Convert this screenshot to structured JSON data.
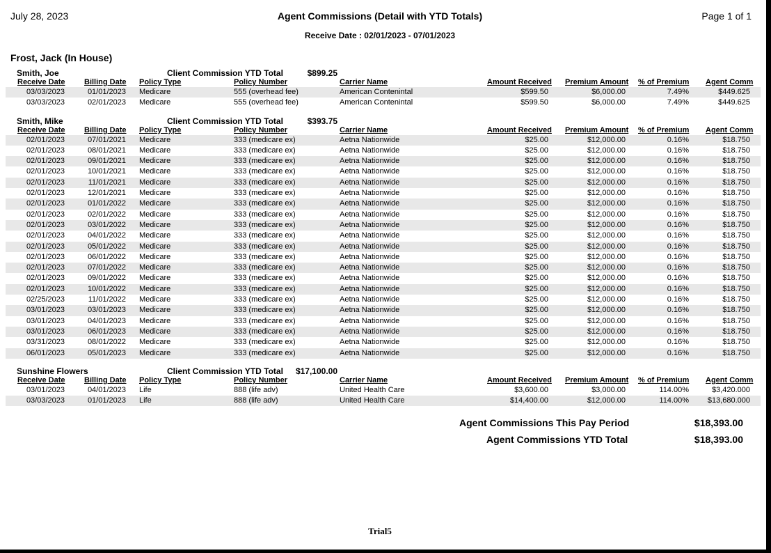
{
  "header": {
    "date": "July 28, 2023",
    "title": "Agent Commissions (Detail with YTD Totals)",
    "page": "Page 1 of 1",
    "receive_range": "Receive Date : 02/01/2023 - 07/01/2023"
  },
  "agent": "Frost, Jack (In House)",
  "columns": [
    "Receive Date",
    "Billing Date",
    "Policy Type",
    "Policy Number",
    "Carrier Name",
    "Amount Received",
    "Premium Amount",
    "% of Premium",
    "Agent Comm"
  ],
  "ytd_label": "Client Commission YTD Total",
  "groups": [
    {
      "client": "Smith, Joe",
      "ytd": "$899.25",
      "shade_start": 0,
      "rows": [
        [
          "03/03/2023",
          "01/01/2023",
          "Medicare",
          "555 (overhead fee)",
          "American Contenintal",
          "$599.50",
          "$6,000.00",
          "7.49%",
          "$449.625"
        ],
        [
          "03/03/2023",
          "02/01/2023",
          "Medicare",
          "555 (overhead fee)",
          "American Contenintal",
          "$599.50",
          "$6,000.00",
          "7.49%",
          "$449.625"
        ]
      ]
    },
    {
      "client": "Smith, Mike",
      "ytd": "$393.75",
      "shade_start": 0,
      "rows": [
        [
          "02/01/2023",
          "07/01/2021",
          "Medicare",
          "333 (medicare ex)",
          "Aetna Nationwide",
          "$25.00",
          "$12,000.00",
          "0.16%",
          "$18.750"
        ],
        [
          "02/01/2023",
          "08/01/2021",
          "Medicare",
          "333 (medicare ex)",
          "Aetna Nationwide",
          "$25.00",
          "$12,000.00",
          "0.16%",
          "$18.750"
        ],
        [
          "02/01/2023",
          "09/01/2021",
          "Medicare",
          "333 (medicare ex)",
          "Aetna Nationwide",
          "$25.00",
          "$12,000.00",
          "0.16%",
          "$18.750"
        ],
        [
          "02/01/2023",
          "10/01/2021",
          "Medicare",
          "333 (medicare ex)",
          "Aetna Nationwide",
          "$25.00",
          "$12,000.00",
          "0.16%",
          "$18.750"
        ],
        [
          "02/01/2023",
          "11/01/2021",
          "Medicare",
          "333 (medicare ex)",
          "Aetna Nationwide",
          "$25.00",
          "$12,000.00",
          "0.16%",
          "$18.750"
        ],
        [
          "02/01/2023",
          "12/01/2021",
          "Medicare",
          "333 (medicare ex)",
          "Aetna Nationwide",
          "$25.00",
          "$12,000.00",
          "0.16%",
          "$18.750"
        ],
        [
          "02/01/2023",
          "01/01/2022",
          "Medicare",
          "333 (medicare ex)",
          "Aetna Nationwide",
          "$25.00",
          "$12,000.00",
          "0.16%",
          "$18.750"
        ],
        [
          "02/01/2023",
          "02/01/2022",
          "Medicare",
          "333 (medicare ex)",
          "Aetna Nationwide",
          "$25.00",
          "$12,000.00",
          "0.16%",
          "$18.750"
        ],
        [
          "02/01/2023",
          "03/01/2022",
          "Medicare",
          "333 (medicare ex)",
          "Aetna Nationwide",
          "$25.00",
          "$12,000.00",
          "0.16%",
          "$18.750"
        ],
        [
          "02/01/2023",
          "04/01/2022",
          "Medicare",
          "333 (medicare ex)",
          "Aetna Nationwide",
          "$25.00",
          "$12,000.00",
          "0.16%",
          "$18.750"
        ],
        [
          "02/01/2023",
          "05/01/2022",
          "Medicare",
          "333 (medicare ex)",
          "Aetna Nationwide",
          "$25.00",
          "$12,000.00",
          "0.16%",
          "$18.750"
        ],
        [
          "02/01/2023",
          "06/01/2022",
          "Medicare",
          "333 (medicare ex)",
          "Aetna Nationwide",
          "$25.00",
          "$12,000.00",
          "0.16%",
          "$18.750"
        ],
        [
          "02/01/2023",
          "07/01/2022",
          "Medicare",
          "333 (medicare ex)",
          "Aetna Nationwide",
          "$25.00",
          "$12,000.00",
          "0.16%",
          "$18.750"
        ],
        [
          "02/01/2023",
          "09/01/2022",
          "Medicare",
          "333 (medicare ex)",
          "Aetna Nationwide",
          "$25.00",
          "$12,000.00",
          "0.16%",
          "$18.750"
        ],
        [
          "02/01/2023",
          "10/01/2022",
          "Medicare",
          "333 (medicare ex)",
          "Aetna Nationwide",
          "$25.00",
          "$12,000.00",
          "0.16%",
          "$18.750"
        ],
        [
          "02/25/2023",
          "11/01/2022",
          "Medicare",
          "333 (medicare ex)",
          "Aetna Nationwide",
          "$25.00",
          "$12,000.00",
          "0.16%",
          "$18.750"
        ],
        [
          "03/01/2023",
          "03/01/2023",
          "Medicare",
          "333 (medicare ex)",
          "Aetna Nationwide",
          "$25.00",
          "$12,000.00",
          "0.16%",
          "$18.750"
        ],
        [
          "03/01/2023",
          "04/01/2023",
          "Medicare",
          "333 (medicare ex)",
          "Aetna Nationwide",
          "$25.00",
          "$12,000.00",
          "0.16%",
          "$18.750"
        ],
        [
          "03/01/2023",
          "06/01/2023",
          "Medicare",
          "333 (medicare ex)",
          "Aetna Nationwide",
          "$25.00",
          "$12,000.00",
          "0.16%",
          "$18.750"
        ],
        [
          "03/31/2023",
          "08/01/2022",
          "Medicare",
          "333 (medicare ex)",
          "Aetna Nationwide",
          "$25.00",
          "$12,000.00",
          "0.16%",
          "$18.750"
        ],
        [
          "06/01/2023",
          "05/01/2023",
          "Medicare",
          "333 (medicare ex)",
          "Aetna Nationwide",
          "$25.00",
          "$12,000.00",
          "0.16%",
          "$18.750"
        ]
      ]
    },
    {
      "client": "Sunshine Flowers",
      "ytd": "$17,100.00",
      "shade_start": 1,
      "rows": [
        [
          "03/01/2023",
          "04/01/2023",
          "Life",
          "888 (life adv)",
          "United Health Care",
          "$3,600.00",
          "$3,000.00",
          "114.00%",
          "$3,420.000"
        ],
        [
          "03/03/2023",
          "01/01/2023",
          "Life",
          "888 (life adv)",
          "United Health Care",
          "$14,400.00",
          "$12,000.00",
          "114.00%",
          "$13,680.000"
        ]
      ]
    }
  ],
  "totals": {
    "pay_period_label": "Agent Commissions This Pay Period",
    "pay_period_value": "$18,393.00",
    "ytd_label": "Agent Commissions YTD Total",
    "ytd_value": "$18,393.00"
  },
  "footer": "Trial5",
  "colors": {
    "row_shade": "#e8e8e8",
    "border": "#000000"
  }
}
